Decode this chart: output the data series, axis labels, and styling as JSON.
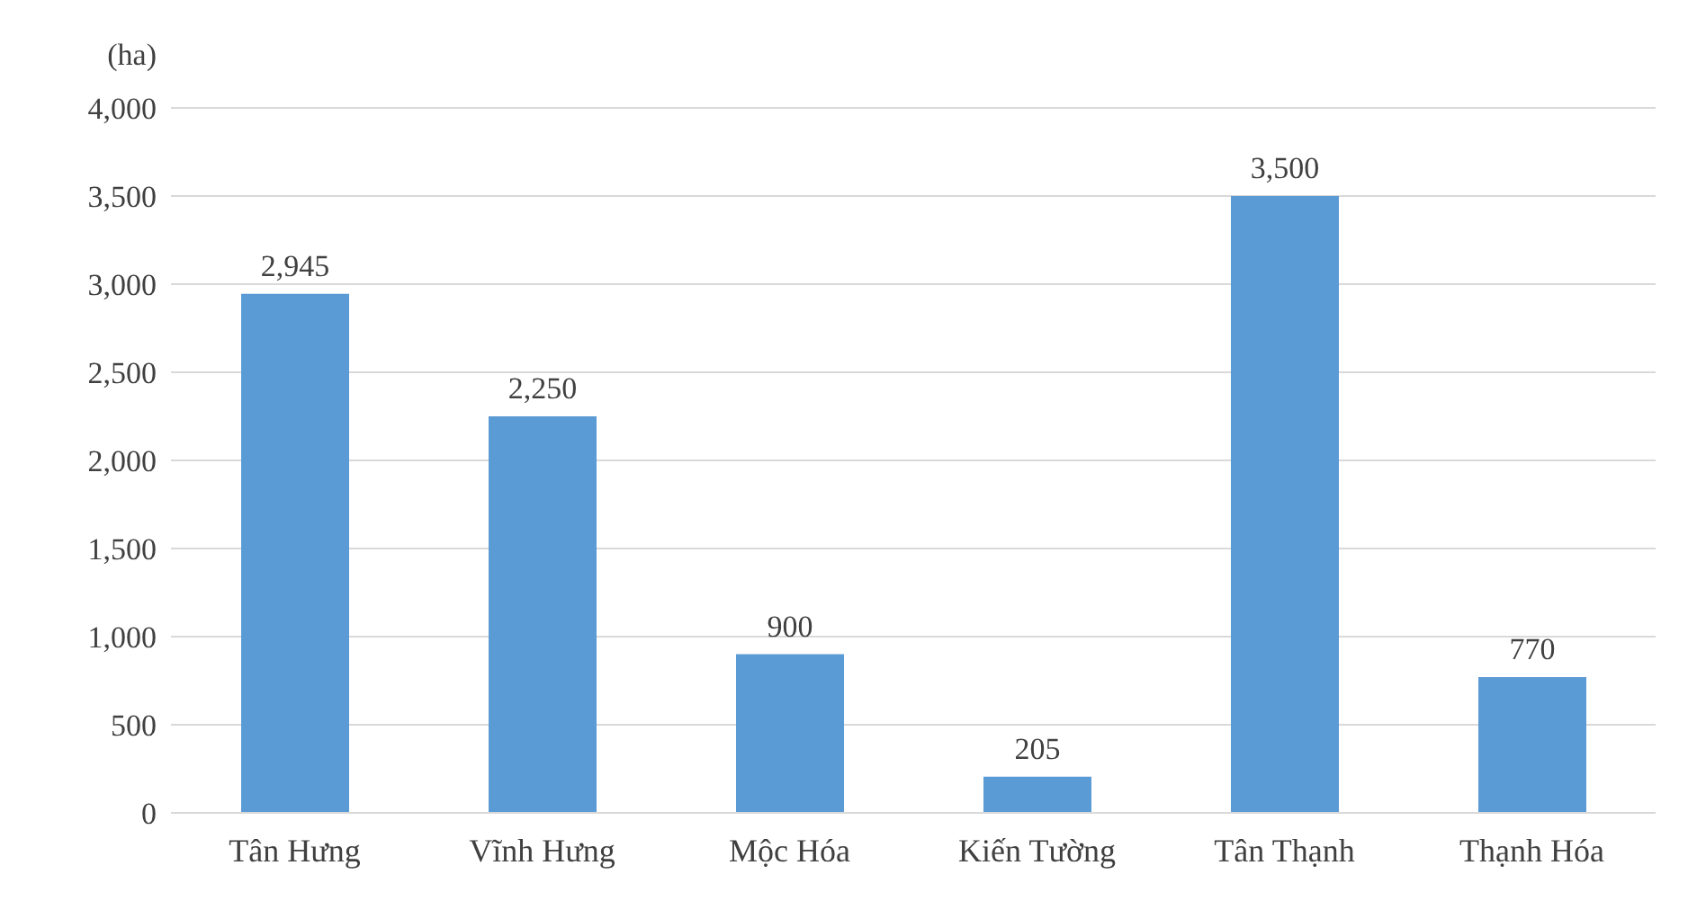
{
  "chart_data": {
    "type": "bar",
    "ylabel": "(ha)",
    "categories": [
      "Tân Hưng",
      "Vĩnh Hưng",
      "Mộc Hóa",
      "Kiến  Tường",
      "Tân Thạnh",
      "Thạnh Hóa"
    ],
    "values": [
      2945,
      2250,
      900,
      205,
      3500,
      770
    ],
    "color": "#5b9bd5",
    "ylim": [
      0,
      4000
    ],
    "yticks": [
      {
        "value": 0,
        "label": "0"
      },
      {
        "value": 500,
        "label": "500"
      },
      {
        "value": 1000,
        "label": "1,000"
      },
      {
        "value": 1500,
        "label": "1,500"
      },
      {
        "value": 2000,
        "label": "2,000"
      },
      {
        "value": 2500,
        "label": "2,500"
      },
      {
        "value": 3000,
        "label": "3,000"
      },
      {
        "value": 3500,
        "label": "3,500"
      },
      {
        "value": 4000,
        "label": "4,000"
      }
    ],
    "value_labels": [
      "2,945",
      "2,250",
      "900",
      "205",
      "3,500",
      "770"
    ],
    "grid": "y",
    "legend": false
  }
}
